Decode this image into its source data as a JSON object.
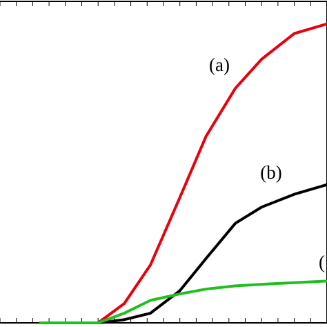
{
  "chart_data": {
    "type": "line",
    "x": [
      0.12,
      0.2,
      0.3,
      0.38,
      0.46,
      0.55,
      0.63,
      0.72,
      0.8,
      0.9,
      1.0
    ],
    "series": [
      {
        "color": "#e8000b",
        "values": [
          0,
          0,
          0,
          0.06,
          0.18,
          0.39,
          0.58,
          0.73,
          0.82,
          0.9,
          0.93
        ]
      },
      {
        "color": "#000000",
        "values": [
          0,
          0,
          0,
          0.01,
          0.03,
          0.1,
          0.2,
          0.31,
          0.36,
          0.4,
          0.43
        ]
      },
      {
        "color": "#1ec01e",
        "values": [
          0,
          0,
          0,
          0.03,
          0.07,
          0.09,
          0.105,
          0.115,
          0.12,
          0.125,
          0.13
        ]
      }
    ],
    "annotations": [
      "(a)",
      "(b)",
      "("
    ],
    "xlim": [
      0,
      1
    ],
    "ylim": [
      0,
      1
    ],
    "xticks": [
      0,
      0.05,
      0.1,
      0.15,
      0.2,
      0.25,
      0.3,
      0.35,
      0.4,
      0.45,
      0.5,
      0.55,
      0.6,
      0.65,
      0.7,
      0.75,
      0.8,
      0.85,
      0.9,
      0.95,
      1
    ]
  }
}
